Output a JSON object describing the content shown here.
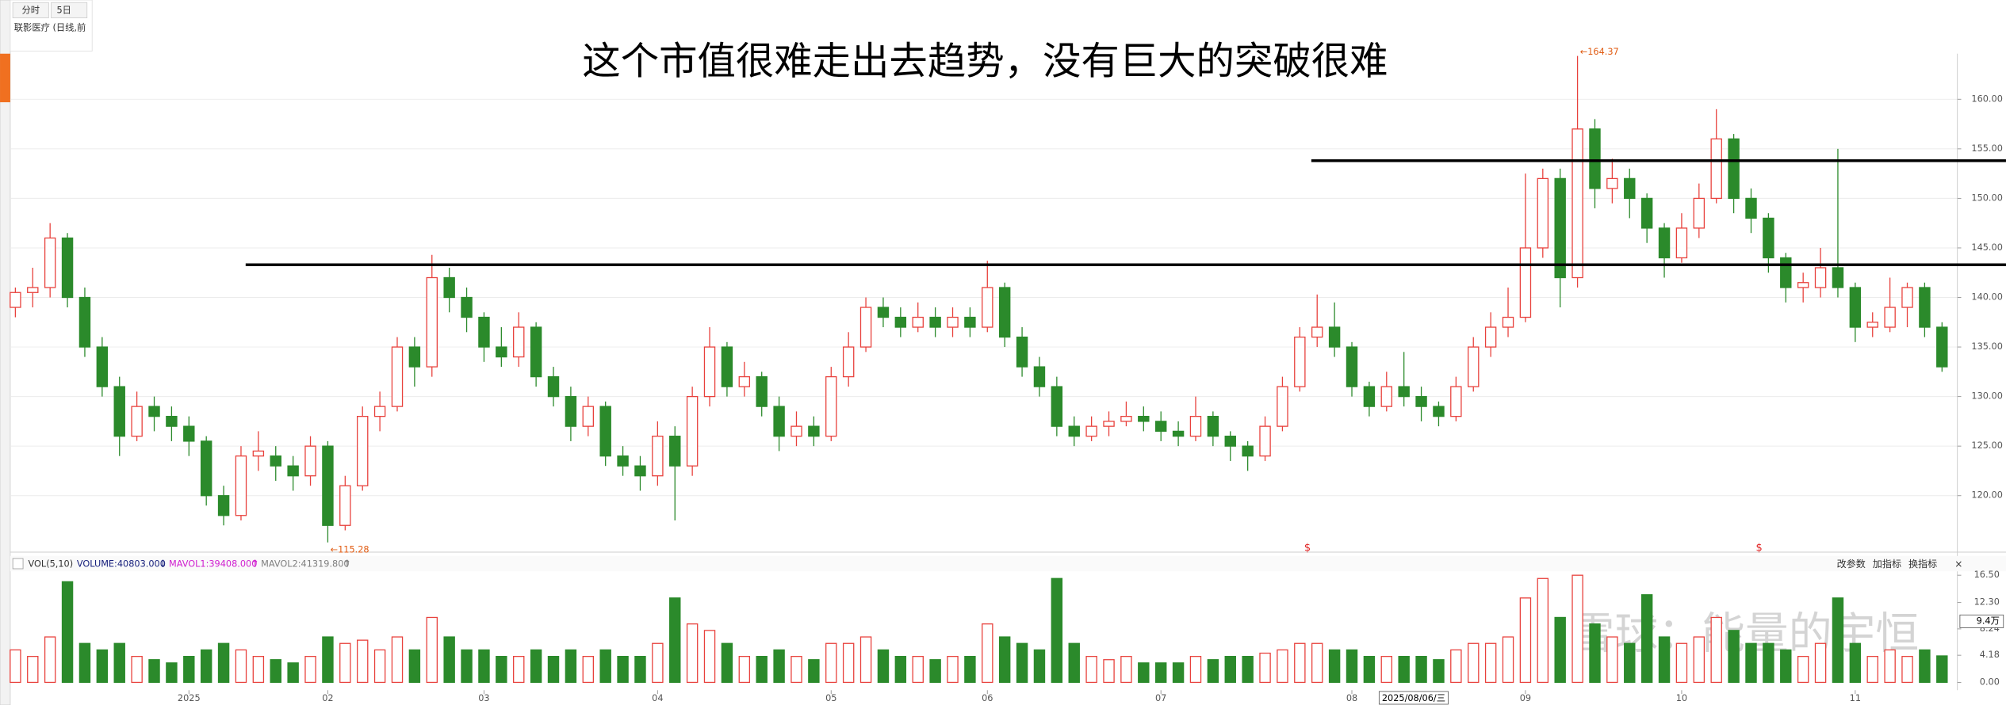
{
  "top_panel": {
    "tabs": [
      "分时",
      "5日"
    ],
    "stock": "联影医疗 (日线,前"
  },
  "chart_data": {
    "type": "candlestick",
    "title": "这个市值很难走出去趋势，没有巨大的突破很难",
    "categories": [
      null,
      null,
      null,
      null,
      null,
      null,
      null,
      null,
      null,
      null,
      "2025",
      null,
      null,
      null,
      null,
      null,
      null,
      null,
      "02",
      null,
      null,
      null,
      null,
      null,
      null,
      null,
      null,
      "03",
      null,
      null,
      null,
      null,
      null,
      null,
      null,
      null,
      null,
      "04",
      null,
      null,
      null,
      null,
      null,
      null,
      null,
      null,
      null,
      "05",
      null,
      null,
      null,
      null,
      null,
      null,
      null,
      null,
      "06",
      null,
      null,
      null,
      null,
      null,
      null,
      null,
      null,
      null,
      "07",
      null,
      null,
      null,
      null,
      null,
      null,
      null,
      null,
      null,
      null,
      "08",
      null,
      null,
      null,
      null,
      null,
      null,
      null,
      null,
      null,
      "09",
      null,
      null,
      null,
      null,
      null,
      null,
      null,
      null,
      "10",
      null,
      null,
      null,
      null,
      null,
      null,
      null,
      null,
      null,
      "11",
      null,
      null,
      null,
      null,
      null
    ],
    "ohlc": [
      [
        139,
        141,
        138,
        140.5
      ],
      [
        140.5,
        143,
        139,
        141
      ],
      [
        141,
        147.5,
        140,
        146
      ],
      [
        146,
        146.5,
        139,
        140
      ],
      [
        140,
        141,
        134,
        135
      ],
      [
        135,
        136,
        130,
        131
      ],
      [
        131,
        132,
        124,
        126
      ],
      [
        126,
        130.5,
        125.5,
        129
      ],
      [
        129,
        130,
        126.5,
        128
      ],
      [
        128,
        129,
        125.5,
        127
      ],
      [
        127,
        128,
        124,
        125.5
      ],
      [
        125.5,
        126,
        119,
        120
      ],
      [
        120,
        121,
        117,
        118
      ],
      [
        118,
        125,
        117.5,
        124
      ],
      [
        124,
        126.5,
        122.5,
        124.5
      ],
      [
        124,
        125,
        121.5,
        123
      ],
      [
        123,
        124,
        120.5,
        122
      ],
      [
        122,
        126,
        121,
        125
      ],
      [
        125,
        125.5,
        115.28,
        117
      ],
      [
        117,
        122,
        116.5,
        121
      ],
      [
        121,
        129,
        120.5,
        128
      ],
      [
        128,
        130.5,
        126.5,
        129
      ],
      [
        129,
        136,
        128.5,
        135
      ],
      [
        135,
        136,
        131,
        133
      ],
      [
        133,
        144.3,
        132,
        142
      ],
      [
        142,
        143,
        138.5,
        140
      ],
      [
        140,
        141,
        136.5,
        138
      ],
      [
        138,
        138.5,
        133.5,
        135
      ],
      [
        135,
        137,
        133,
        134
      ],
      [
        134,
        138.5,
        133,
        137
      ],
      [
        137,
        137.5,
        131,
        132
      ],
      [
        132,
        133,
        129,
        130
      ],
      [
        130,
        131,
        125.5,
        127
      ],
      [
        127,
        130,
        126,
        129
      ],
      [
        129,
        129.5,
        123,
        124
      ],
      [
        124,
        125,
        122,
        123
      ],
      [
        123,
        124,
        120.5,
        122
      ],
      [
        122,
        127.5,
        121,
        126
      ],
      [
        126,
        127,
        117.5,
        123
      ],
      [
        123,
        131,
        122,
        130
      ],
      [
        130,
        137,
        129,
        135
      ],
      [
        135,
        135.5,
        130,
        131
      ],
      [
        131,
        133.5,
        130,
        132
      ],
      [
        132,
        132.5,
        128,
        129
      ],
      [
        129,
        130,
        124.5,
        126
      ],
      [
        126,
        128.5,
        125,
        127
      ],
      [
        127,
        128,
        125,
        126
      ],
      [
        126,
        133,
        125.5,
        132
      ],
      [
        132,
        136.5,
        131,
        135
      ],
      [
        135,
        140,
        134.5,
        139
      ],
      [
        139,
        140,
        137,
        138
      ],
      [
        138,
        139,
        136,
        137
      ],
      [
        137,
        139.5,
        136.5,
        138
      ],
      [
        138,
        139,
        136,
        137
      ],
      [
        137,
        139,
        136,
        138
      ],
      [
        138,
        139,
        136,
        137
      ],
      [
        137,
        143.7,
        136.5,
        141
      ],
      [
        141,
        141.5,
        135,
        136
      ],
      [
        136,
        137,
        132,
        133
      ],
      [
        133,
        134,
        130,
        131
      ],
      [
        131,
        132,
        126,
        127
      ],
      [
        127,
        128,
        125,
        126
      ],
      [
        126,
        128,
        125.5,
        127
      ],
      [
        127,
        128.5,
        126,
        127.5
      ],
      [
        127.5,
        129.5,
        127,
        128
      ],
      [
        128,
        129,
        126.5,
        127.5
      ],
      [
        127.5,
        128.5,
        125.5,
        126.5
      ],
      [
        126.5,
        127.5,
        125,
        126
      ],
      [
        126,
        130,
        125.5,
        128
      ],
      [
        128,
        128.5,
        125,
        126
      ],
      [
        126,
        126.5,
        123.5,
        125
      ],
      [
        125,
        125.5,
        122.5,
        124
      ],
      [
        124,
        128,
        123.5,
        127
      ],
      [
        127,
        132,
        126.5,
        131
      ],
      [
        131,
        137,
        130.5,
        136
      ],
      [
        136,
        140.3,
        135,
        137
      ],
      [
        137,
        139.5,
        134,
        135
      ],
      [
        135,
        135.5,
        130,
        131
      ],
      [
        131,
        131.5,
        128,
        129
      ],
      [
        129,
        132.5,
        128.5,
        131
      ],
      [
        131,
        134.5,
        129,
        130
      ],
      [
        130,
        131,
        127.5,
        129
      ],
      [
        129,
        129.5,
        127,
        128
      ],
      [
        128,
        132,
        127.5,
        131
      ],
      [
        131,
        136,
        130.5,
        135
      ],
      [
        135,
        138.5,
        134,
        137
      ],
      [
        137,
        141,
        136,
        138
      ],
      [
        138,
        152.5,
        137.5,
        145
      ],
      [
        145,
        153,
        144,
        152
      ],
      [
        152,
        153,
        139,
        142
      ],
      [
        142,
        164.37,
        141,
        157
      ],
      [
        157,
        158,
        149,
        151
      ],
      [
        151,
        154,
        149.5,
        152
      ],
      [
        152,
        153,
        148,
        150
      ],
      [
        150,
        150.5,
        145.5,
        147
      ],
      [
        147,
        147.5,
        142,
        144
      ],
      [
        144,
        148.5,
        143.5,
        147
      ],
      [
        147,
        151.5,
        146,
        150
      ],
      [
        150,
        159,
        149.5,
        156
      ],
      [
        156,
        156.5,
        148.5,
        150
      ],
      [
        150,
        151,
        146.5,
        148
      ],
      [
        148,
        148.5,
        142.5,
        144
      ],
      [
        144,
        144.5,
        139.5,
        141
      ],
      [
        141,
        142.5,
        139.5,
        141.5
      ],
      [
        141,
        145,
        140,
        143
      ],
      [
        143,
        155,
        140,
        141
      ],
      [
        141,
        141.5,
        135.5,
        137
      ],
      [
        137,
        138.5,
        136,
        137.5
      ],
      [
        137,
        142,
        136.5,
        139
      ],
      [
        139,
        141.5,
        137,
        141
      ],
      [
        141,
        141.5,
        136,
        137
      ],
      [
        137,
        137.5,
        132.5,
        133
      ]
    ],
    "up_color": "#e8413c",
    "down_color": "#2b8a2b",
    "ylim": [
      114.3,
      164.6
    ],
    "yticks": [
      {
        "value": 120,
        "label": "120.00"
      },
      {
        "value": 125,
        "label": "125.00"
      },
      {
        "value": 130,
        "label": "130.00"
      },
      {
        "value": 135,
        "label": "135.00"
      },
      {
        "value": 140,
        "label": "140.00"
      },
      {
        "value": 145,
        "label": "145.00"
      },
      {
        "value": 150,
        "label": "150.00"
      },
      {
        "value": 155,
        "label": "155.00"
      },
      {
        "value": 160,
        "label": "160.00"
      }
    ],
    "grid": true,
    "hlines": [
      {
        "value": 143.3,
        "color": "#000000"
      },
      {
        "value": 153.8,
        "color": "#000000"
      }
    ],
    "extremes": [
      {
        "value": 115.28,
        "label": "←115.28"
      },
      {
        "value": 164.37,
        "label": "←164.37"
      }
    ],
    "markers": [
      "$",
      "$"
    ],
    "cursor_date": "2025/08/06/三",
    "volume_panel": {
      "name": "VOL(5,10)",
      "items": [
        {
          "label": "VOLUME:40803.000",
          "arrow": "↓",
          "color": "#1a237e"
        },
        {
          "label": "MAVOL1:39408.000",
          "arrow": "↑",
          "color": "#d020d0"
        },
        {
          "label": "MAVOL2:41319.800",
          "arrow": "↑",
          "color": "#808080"
        }
      ],
      "buttons": [
        "改参数",
        "加指标",
        "换指标",
        "×"
      ],
      "values": [
        5,
        4,
        7,
        15.5,
        6,
        5,
        6,
        4,
        3.5,
        3,
        4,
        5,
        6,
        5,
        4,
        3.5,
        3,
        4,
        7,
        6,
        6.5,
        5,
        7,
        5,
        10,
        7,
        5,
        5,
        4,
        4,
        5,
        4,
        5,
        4,
        5,
        4,
        4,
        6,
        13,
        9,
        8,
        6,
        4,
        4,
        5,
        4,
        3.5,
        6,
        6,
        7,
        5,
        4,
        4,
        3.5,
        4,
        4,
        9,
        7,
        6,
        5,
        16,
        6,
        4,
        3.5,
        4,
        3,
        3,
        3,
        4,
        3.5,
        4,
        4,
        4.5,
        5,
        6,
        6,
        5,
        5,
        4,
        4,
        4,
        4,
        3.5,
        5,
        6,
        6,
        7,
        13,
        16,
        10,
        16.5,
        9,
        7,
        6,
        13.5,
        7,
        6,
        7,
        10,
        8,
        6,
        6,
        5,
        4,
        6,
        13,
        6,
        4,
        5,
        4,
        5,
        4.08
      ],
      "ylim": [
        -1.2,
        17.3
      ],
      "yticks": [
        {
          "value": 0,
          "label": "0.00"
        },
        {
          "value": 4.18,
          "label": "4.18"
        },
        {
          "value": 8.24,
          "label": "8.24"
        },
        {
          "value": 12.3,
          "label": "12.30"
        },
        {
          "value": 16.5,
          "label": "16.50"
        }
      ],
      "cursor_label": {
        "value": 9.4,
        "label": "9.4万"
      }
    },
    "watermark": "雪球：能量的宇恒"
  }
}
